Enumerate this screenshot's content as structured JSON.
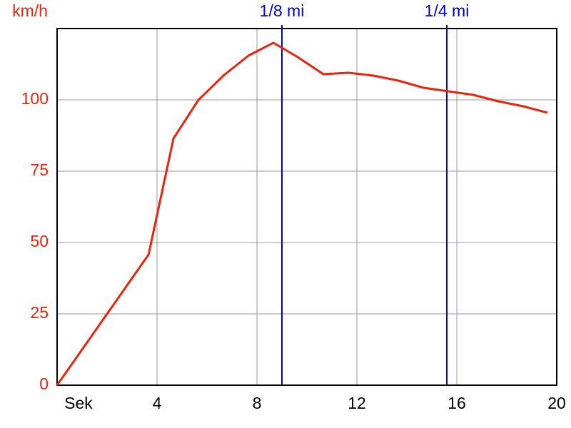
{
  "chart_data": {
    "type": "line",
    "y_label": "km/h",
    "x_label": "Sek",
    "x": [
      0,
      3.66,
      4.66,
      5.66,
      6.69,
      7.66,
      8.66,
      9.63,
      10.66,
      11.66,
      12.66,
      13.66,
      14.66,
      15.66,
      16.66,
      17.66,
      18.66,
      19.63
    ],
    "values": [
      0,
      45.75,
      86.5,
      100,
      108.75,
      115.5,
      120,
      115,
      109,
      109.5,
      108.5,
      106.75,
      104.25,
      103,
      101.75,
      99.5,
      97.75,
      95.5
    ],
    "color": "#e8240c",
    "xlim": [
      0,
      20
    ],
    "xticks": [
      4,
      8,
      12,
      16,
      20
    ],
    "ylim": [
      0,
      125
    ],
    "yticks": [
      0,
      25,
      50,
      75,
      100
    ],
    "grid": true,
    "markers": [
      {
        "label": "1/8 mi",
        "x": 9
      },
      {
        "label": "1/4 mi",
        "x": 15.6
      }
    ],
    "marker_color": "#0000cc"
  }
}
